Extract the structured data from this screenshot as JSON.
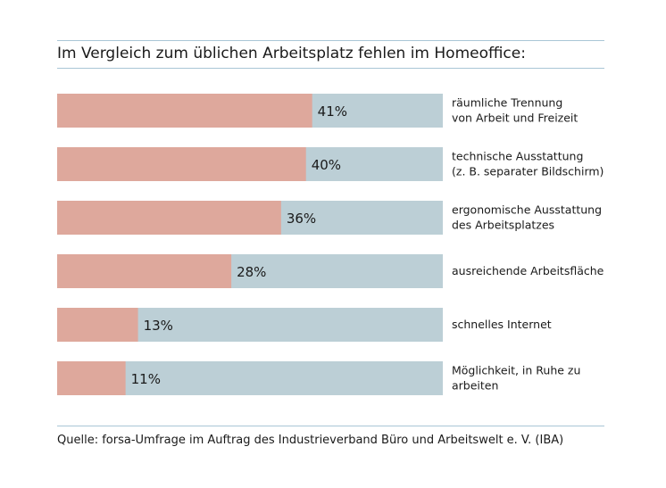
{
  "title": "Im Vergleich zum üblichen Arbeitsplatz fehlen im Homeoffice:",
  "source": "Quelle: forsa-Umfrage im Auftrag des Industrieverband Büro und Arbeitswelt e. V. (IBA)",
  "colors": {
    "value_bar": "#dea89c",
    "track_bar": "#bccfd6",
    "rule": "#a9c6d6"
  },
  "chart_data": {
    "type": "bar",
    "orientation": "horizontal",
    "title": "Im Vergleich zum üblichen Arbeitsplatz fehlen im Homeoffice:",
    "xlim": [
      0,
      62
    ],
    "categories": [
      [
        "räumliche Trennung",
        "von Arbeit und Freizeit"
      ],
      [
        "technische Ausstattung",
        "(z. B. separater Bildschirm)"
      ],
      [
        "ergonomische Ausstattung",
        "des Arbeitsplatzes"
      ],
      [
        "ausreichende Arbeitsfläche"
      ],
      [
        "schnelles Internet"
      ],
      [
        "Möglichkeit, in Ruhe zu",
        "arbeiten"
      ]
    ],
    "values": [
      41,
      40,
      36,
      28,
      13,
      11
    ],
    "value_labels": [
      "41%",
      "40%",
      "36%",
      "28%",
      "13%",
      "11%"
    ],
    "grid": false,
    "legend": "none"
  }
}
